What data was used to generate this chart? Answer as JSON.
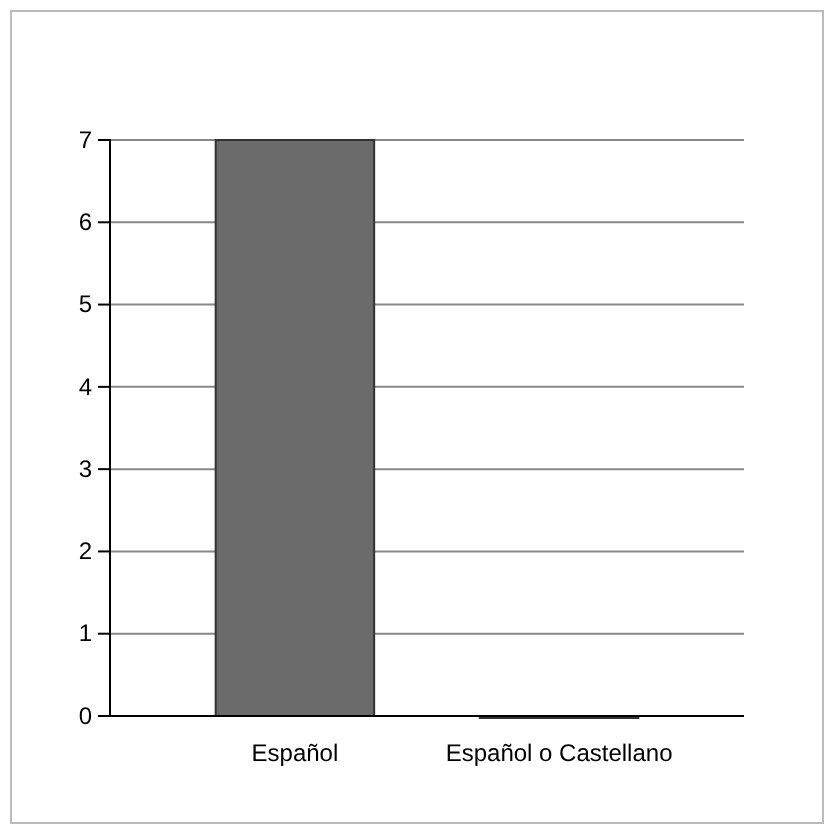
{
  "chart_data": {
    "type": "bar",
    "categories": [
      "Español",
      "Español o Castellano"
    ],
    "values": [
      7,
      0
    ],
    "color": "#6b6b6b",
    "ylim": [
      0,
      7
    ],
    "yticks": [
      0,
      1,
      2,
      3,
      4,
      5,
      6,
      7
    ],
    "grid": "y"
  }
}
